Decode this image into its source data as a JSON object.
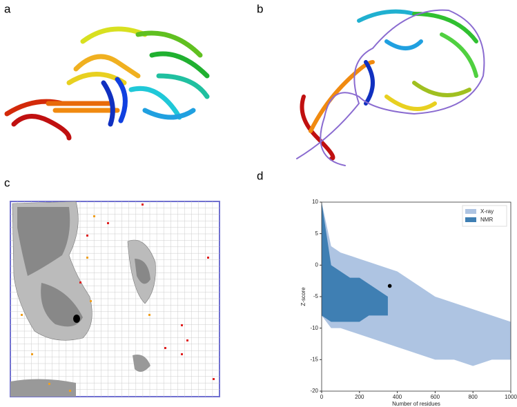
{
  "panels": {
    "a": "a",
    "b": "b",
    "c": "c",
    "d": "d"
  },
  "chart_data": {
    "type": "area-band",
    "x_label": "Number of residues",
    "y_label": "Z-score",
    "xlim": [
      0,
      1000
    ],
    "xticks": [
      0,
      200,
      400,
      600,
      800,
      1000
    ],
    "ylim": [
      -20,
      10
    ],
    "yticks": [
      -20,
      -15,
      -10,
      -5,
      0,
      5,
      10
    ],
    "legend": "top-right",
    "series": [
      {
        "name": "X-ray",
        "color": "#aec4e2",
        "x": [
          0,
          50,
          100,
          200,
          300,
          400,
          500,
          600,
          700,
          800,
          900,
          1000
        ],
        "upper": [
          10,
          3,
          2,
          1,
          0,
          -1,
          -3,
          -5,
          -6,
          -7,
          -8,
          -9
        ],
        "lower": [
          -8,
          -10,
          -10,
          -11,
          -12,
          -13,
          -14,
          -15,
          -15,
          -16,
          -15,
          -15
        ]
      },
      {
        "name": "NMR",
        "color": "#3f7fb3",
        "x": [
          0,
          50,
          100,
          150,
          200,
          250,
          300,
          350
        ],
        "upper": [
          10,
          0,
          -1,
          -2,
          -2,
          -3,
          -4,
          -5
        ],
        "lower": [
          -8,
          -9,
          -9,
          -9,
          -9,
          -8,
          -8,
          -8
        ]
      }
    ],
    "highlight": {
      "x": 360,
      "y": -3.3,
      "color": "#000000"
    }
  }
}
